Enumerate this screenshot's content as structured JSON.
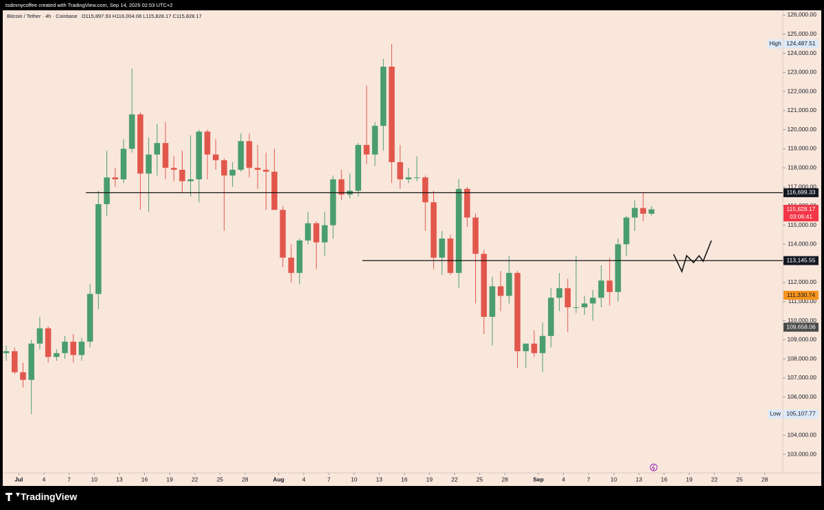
{
  "chart_data": {
    "type": "candlestick",
    "credit": "tsdinmycoffee created with TradingView.com, Sep 14, 2025 02:53 UTC+2",
    "title": "Bitcoin / Tether · 4h · Coinbase",
    "ohlc_legend": "O115,897.93 H116,004.08 L115,828.17 C115,828.17",
    "brand": "TradingView",
    "up_color": "#4a9d6f",
    "down_color": "#e2574c",
    "x": [
      "2025-06-29",
      "2025-06-30",
      "2025-07-01",
      "2025-07-02",
      "2025-07-03",
      "2025-07-04",
      "2025-07-05",
      "2025-07-06",
      "2025-07-07",
      "2025-07-08",
      "2025-07-09",
      "2025-07-10",
      "2025-07-11",
      "2025-07-12",
      "2025-07-13",
      "2025-07-14",
      "2025-07-15",
      "2025-07-16",
      "2025-07-17",
      "2025-07-18",
      "2025-07-19",
      "2025-07-20",
      "2025-07-21",
      "2025-07-22",
      "2025-07-23",
      "2025-07-24",
      "2025-07-25",
      "2025-07-26",
      "2025-07-27",
      "2025-07-28",
      "2025-07-29",
      "2025-07-30",
      "2025-07-31",
      "2025-08-01",
      "2025-08-02",
      "2025-08-03",
      "2025-08-04",
      "2025-08-05",
      "2025-08-06",
      "2025-08-07",
      "2025-08-08",
      "2025-08-09",
      "2025-08-10",
      "2025-08-11",
      "2025-08-12",
      "2025-08-13",
      "2025-08-14",
      "2025-08-15",
      "2025-08-16",
      "2025-08-17",
      "2025-08-18",
      "2025-08-19",
      "2025-08-20",
      "2025-08-21",
      "2025-08-22",
      "2025-08-23",
      "2025-08-24",
      "2025-08-25",
      "2025-08-26",
      "2025-08-27",
      "2025-08-28",
      "2025-08-29",
      "2025-08-30",
      "2025-08-31",
      "2025-09-01",
      "2025-09-02",
      "2025-09-03",
      "2025-09-04",
      "2025-09-05",
      "2025-09-06",
      "2025-09-07",
      "2025-09-08",
      "2025-09-09",
      "2025-09-10",
      "2025-09-11",
      "2025-09-12",
      "2025-09-13",
      "2025-09-14"
    ],
    "open": [
      108300,
      108400,
      107300,
      106900,
      108800,
      109600,
      108100,
      108300,
      108900,
      108200,
      108900,
      111400,
      116100,
      117500,
      117400,
      119000,
      120800,
      117700,
      118700,
      119300,
      118000,
      117900,
      117300,
      117400,
      119900,
      118700,
      118400,
      117600,
      117900,
      119400,
      118000,
      117900,
      117800,
      115800,
      113300,
      112500,
      114200,
      115100,
      114100,
      115000,
      117400,
      116600,
      116800,
      119200,
      118700,
      120200,
      123300,
      118300,
      117400,
      117500,
      117500,
      116200,
      113300,
      114300,
      112500,
      116900,
      115400,
      113500,
      110200,
      111800,
      111300,
      112500,
      108400,
      108800,
      108300,
      109200,
      111200,
      111700,
      110700,
      110700,
      110900,
      111200,
      112100,
      111500,
      114000,
      115400,
      115900,
      115600
    ],
    "high": [
      108700,
      108600,
      107800,
      109000,
      110200,
      109700,
      108500,
      109200,
      109300,
      109100,
      111900,
      116800,
      118900,
      118000,
      119500,
      123200,
      120900,
      119600,
      120300,
      120400,
      118600,
      118900,
      119700,
      120000,
      120000,
      119500,
      118500,
      118300,
      119800,
      119800,
      119200,
      118800,
      119000,
      116000,
      114000,
      114300,
      115700,
      115200,
      115700,
      117600,
      117900,
      117700,
      119300,
      122300,
      120400,
      123700,
      124487.51,
      119200,
      118000,
      118600,
      117600,
      116800,
      114700,
      114500,
      117400,
      117000,
      115600,
      113700,
      112300,
      112600,
      113400,
      112600,
      108800,
      109500,
      109900,
      111700,
      112500,
      112200,
      113400,
      111300,
      111600,
      112900,
      113300,
      114300,
      115500,
      116300,
      116699.33,
      116000
    ],
    "low": [
      107900,
      107200,
      106500,
      105107.77,
      108500,
      107800,
      107900,
      108000,
      107800,
      107900,
      108600,
      110600,
      115500,
      117000,
      117200,
      118800,
      115800,
      115700,
      117600,
      117400,
      117300,
      116700,
      116500,
      116200,
      117400,
      117900,
      114700,
      117000,
      117800,
      117500,
      116900,
      115800,
      115800,
      112800,
      112000,
      111900,
      114000,
      112700,
      113400,
      114300,
      116300,
      116400,
      116500,
      118200,
      118100,
      118900,
      117200,
      116900,
      117200,
      117300,
      114700,
      112700,
      112400,
      112400,
      111700,
      114900,
      110900,
      109300,
      108700,
      110500,
      110900,
      107500,
      107500,
      108100,
      107300,
      108600,
      110500,
      109400,
      110400,
      110300,
      110000,
      110700,
      110800,
      111000,
      113400,
      114700,
      115200,
      115500
    ],
    "close": [
      108400,
      107300,
      106900,
      108800,
      109600,
      108100,
      108300,
      108900,
      108200,
      108900,
      111400,
      116100,
      117500,
      117400,
      119000,
      120800,
      117700,
      118700,
      119300,
      118000,
      117900,
      117300,
      117400,
      119900,
      118700,
      118400,
      117600,
      117900,
      119400,
      118000,
      117900,
      117800,
      115800,
      113300,
      112500,
      114200,
      115100,
      114100,
      115000,
      117400,
      116600,
      116800,
      119200,
      118700,
      120200,
      123300,
      118300,
      117400,
      117500,
      117500,
      116200,
      113300,
      114300,
      112500,
      116900,
      115400,
      113500,
      110200,
      111800,
      111300,
      112500,
      108400,
      108800,
      108300,
      109200,
      111200,
      111700,
      110700,
      110700,
      110900,
      111200,
      112100,
      111500,
      114000,
      115400,
      115900,
      115600,
      115828.17
    ],
    "xlim": [
      "2025-06-29",
      "2025-09-30"
    ],
    "xticks": [
      {
        "value": "2025-07-01",
        "label": "Jul"
      },
      {
        "value": "2025-07-04",
        "label": "4"
      },
      {
        "value": "2025-07-07",
        "label": "7"
      },
      {
        "value": "2025-07-10",
        "label": "10"
      },
      {
        "value": "2025-07-13",
        "label": "13"
      },
      {
        "value": "2025-07-16",
        "label": "16"
      },
      {
        "value": "2025-07-19",
        "label": "19"
      },
      {
        "value": "2025-07-22",
        "label": "22"
      },
      {
        "value": "2025-07-25",
        "label": "25"
      },
      {
        "value": "2025-07-28",
        "label": "28"
      },
      {
        "value": "2025-08-01",
        "label": "Aug"
      },
      {
        "value": "2025-08-04",
        "label": "4"
      },
      {
        "value": "2025-08-07",
        "label": "7"
      },
      {
        "value": "2025-08-10",
        "label": "10"
      },
      {
        "value": "2025-08-13",
        "label": "13"
      },
      {
        "value": "2025-08-16",
        "label": "16"
      },
      {
        "value": "2025-08-19",
        "label": "19"
      },
      {
        "value": "2025-08-22",
        "label": "22"
      },
      {
        "value": "2025-08-25",
        "label": "25"
      },
      {
        "value": "2025-08-28",
        "label": "28"
      },
      {
        "value": "2025-09-01",
        "label": "Sep"
      },
      {
        "value": "2025-09-04",
        "label": "4"
      },
      {
        "value": "2025-09-07",
        "label": "7"
      },
      {
        "value": "2025-09-10",
        "label": "10"
      },
      {
        "value": "2025-09-13",
        "label": "13"
      },
      {
        "value": "2025-09-16",
        "label": "16"
      },
      {
        "value": "2025-09-19",
        "label": "19"
      },
      {
        "value": "2025-09-22",
        "label": "22"
      },
      {
        "value": "2025-09-25",
        "label": "25"
      },
      {
        "value": "2025-09-28",
        "label": "28"
      }
    ],
    "ylim": [
      102030,
      126250
    ],
    "yticks": [
      {
        "value": 103000,
        "label": "103,000.00"
      },
      {
        "value": 104000,
        "label": "104,000.00"
      },
      {
        "value": 105000,
        "label": "105,000.00"
      },
      {
        "value": 106000,
        "label": "106,000.00"
      },
      {
        "value": 107000,
        "label": "107,000.00"
      },
      {
        "value": 108000,
        "label": "108,000.00"
      },
      {
        "value": 109000,
        "label": "109,000.00"
      },
      {
        "value": 110000,
        "label": "110,000.00"
      },
      {
        "value": 111000,
        "label": "111,000.00"
      },
      {
        "value": 112000,
        "label": "112,000.00"
      },
      {
        "value": 113000,
        "label": "113,000.00"
      },
      {
        "value": 114000,
        "label": "114,000.00"
      },
      {
        "value": 115000,
        "label": "115,000.00"
      },
      {
        "value": 116000,
        "label": "116,000.00"
      },
      {
        "value": 117000,
        "label": "117,000.00"
      },
      {
        "value": 118000,
        "label": "118,000.00"
      },
      {
        "value": 119000,
        "label": "119,000.00"
      },
      {
        "value": 120000,
        "label": "120,000.00"
      },
      {
        "value": 121000,
        "label": "121,000.00"
      },
      {
        "value": 122000,
        "label": "122,000.00"
      },
      {
        "value": 123000,
        "label": "123,000.00"
      },
      {
        "value": 124000,
        "label": "124,000.00"
      },
      {
        "value": 125000,
        "label": "125,000.00"
      },
      {
        "value": 126000,
        "label": "126,000.00"
      }
    ],
    "hlines": [
      {
        "value": 116699.33,
        "label": "116,699.33",
        "start": "2025-07-09"
      },
      {
        "value": 113145.55,
        "label": "113,145.55",
        "start": "2025-08-11"
      }
    ],
    "price_labels": [
      {
        "value": 124487.51,
        "label": "124,487.51",
        "tag": "High",
        "color": "#dde9f7",
        "text_color": "#131722"
      },
      {
        "value": 115828.17,
        "label": "115,828.17",
        "countdown": "03:06:41",
        "color": "#f23645",
        "text_color": "#ffffff"
      },
      {
        "value": 111330.74,
        "label": "111,330.74",
        "color": "#f7941d",
        "text_color": "#131722"
      },
      {
        "value": 109658.06,
        "label": "109,658.06",
        "color": "#4a4a4a",
        "text_color": "#ffffff"
      },
      {
        "value": 105107.77,
        "label": "105,107.77",
        "tag": "Low",
        "color": "#dde9f7",
        "text_color": "#131722"
      }
    ]
  }
}
